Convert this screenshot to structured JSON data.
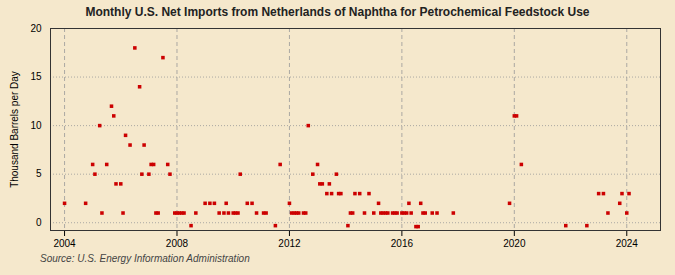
{
  "chart_data": {
    "type": "scatter",
    "title": "Monthly U.S. Net Imports from Netherlands of Naphtha for Petrochemical Feedstock Use",
    "ylabel": "Thousand Barrels per Day",
    "source": "Source: U.S. Energy Information Administration",
    "color": "#cc0000",
    "marker": "square",
    "grid": true,
    "xlim": [
      2003.5,
      2025.2
    ],
    "xticks": [
      2004,
      2008,
      2012,
      2016,
      2020,
      2024
    ],
    "ylim": [
      -0.8,
      20
    ],
    "yticks": [
      0,
      5,
      10,
      15,
      20
    ],
    "x": [
      2004.0,
      2004.75,
      2005.0,
      2005.08,
      2005.25,
      2005.33,
      2005.5,
      2005.67,
      2005.75,
      2005.83,
      2006.0,
      2006.08,
      2006.17,
      2006.33,
      2006.5,
      2006.67,
      2006.75,
      2006.83,
      2007.0,
      2007.08,
      2007.17,
      2007.25,
      2007.33,
      2007.5,
      2007.67,
      2007.75,
      2007.92,
      2008.0,
      2008.08,
      2008.17,
      2008.25,
      2008.5,
      2008.67,
      2009.0,
      2009.17,
      2009.33,
      2009.5,
      2009.67,
      2009.75,
      2009.83,
      2010.0,
      2010.08,
      2010.17,
      2010.25,
      2010.5,
      2010.67,
      2010.83,
      2011.08,
      2011.17,
      2011.5,
      2011.67,
      2012.0,
      2012.08,
      2012.17,
      2012.25,
      2012.33,
      2012.5,
      2012.58,
      2012.67,
      2012.83,
      2013.0,
      2013.08,
      2013.17,
      2013.33,
      2013.42,
      2013.5,
      2013.67,
      2013.75,
      2013.83,
      2014.08,
      2014.17,
      2014.25,
      2014.33,
      2014.5,
      2014.67,
      2014.83,
      2015.0,
      2015.17,
      2015.25,
      2015.33,
      2015.42,
      2015.5,
      2015.67,
      2015.75,
      2015.83,
      2016.0,
      2016.08,
      2016.17,
      2016.25,
      2016.33,
      2016.5,
      2016.58,
      2016.67,
      2016.75,
      2016.83,
      2017.08,
      2017.25,
      2017.83,
      2019.83,
      2020.0,
      2020.08,
      2020.25,
      2021.83,
      2022.58,
      2023.0,
      2023.17,
      2023.33,
      2023.75,
      2023.83,
      2024.0,
      2024.08
    ],
    "values": [
      2,
      2,
      6,
      5,
      10,
      1,
      6,
      12,
      11,
      4,
      4,
      1,
      9,
      8,
      18,
      14,
      5,
      8,
      5,
      6,
      6,
      1,
      1,
      17,
      6,
      5,
      1,
      1,
      1,
      1,
      1,
      -0.3,
      1,
      2,
      2,
      2,
      1,
      1,
      2,
      1,
      1,
      1,
      1,
      5,
      2,
      2,
      1,
      1,
      1,
      -0.3,
      6,
      2,
      1,
      1,
      1,
      1,
      1,
      1,
      10,
      5,
      6,
      4,
      4,
      3,
      4,
      3,
      5,
      3,
      3,
      -0.3,
      1,
      1,
      3,
      3,
      1,
      3,
      1,
      2,
      1,
      1,
      1,
      1,
      1,
      1,
      1,
      1,
      1,
      1,
      2,
      1,
      -0.4,
      -0.4,
      2,
      1,
      1,
      1,
      1,
      1,
      2,
      11,
      11,
      6,
      -0.3,
      -0.3,
      3,
      3,
      1,
      2,
      3,
      1,
      3
    ]
  }
}
